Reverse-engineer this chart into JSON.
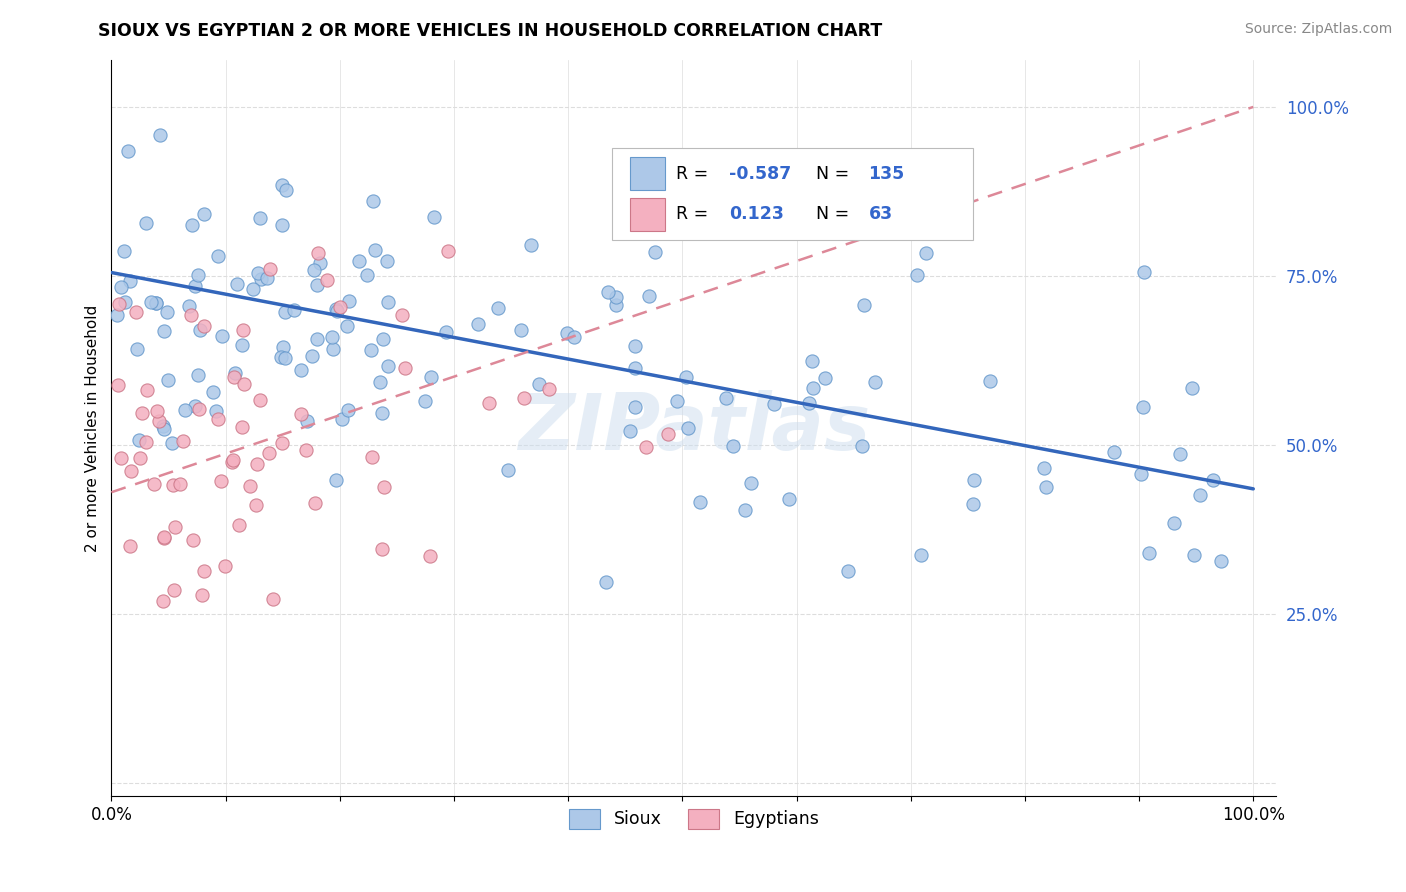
{
  "title": "SIOUX VS EGYPTIAN 2 OR MORE VEHICLES IN HOUSEHOLD CORRELATION CHART",
  "source_text": "Source: ZipAtlas.com",
  "ylabel": "2 or more Vehicles in Household",
  "watermark": "ZIPatlas",
  "legend_sioux_R": "-0.587",
  "legend_sioux_N": "135",
  "legend_egyptian_R": "0.123",
  "legend_egyptian_N": "63",
  "sioux_color": "#adc8e8",
  "sioux_edge": "#6699cc",
  "egyptian_color": "#f4b0c0",
  "egyptian_edge": "#cc7788",
  "sioux_line_color": "#3366bb",
  "egyptian_line_color": "#dd8898",
  "text_blue": "#3366cc",
  "ytick_color": "#3366cc",
  "xlim": [
    0.0,
    1.0
  ],
  "ylim": [
    0.0,
    1.0
  ],
  "xticks": [
    0.0,
    0.1,
    0.2,
    0.3,
    0.4,
    0.5,
    0.6,
    0.7,
    0.8,
    0.9,
    1.0
  ],
  "yticks": [
    0.0,
    0.25,
    0.5,
    0.75,
    1.0
  ],
  "xtick_labels": [
    "0.0%",
    "",
    "",
    "",
    "",
    "",
    "",
    "",
    "",
    "",
    "100.0%"
  ],
  "ytick_labels": [
    "",
    "25.0%",
    "50.0%",
    "75.0%",
    "100.0%"
  ]
}
